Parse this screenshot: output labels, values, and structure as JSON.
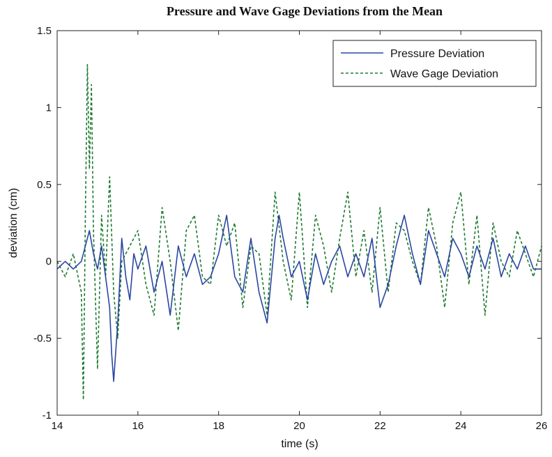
{
  "chart_data": {
    "type": "line",
    "title": "Pressure and Wave Gage Deviations from the Mean",
    "xlabel": "time (s)",
    "ylabel": "deviation (cm)",
    "xlim": [
      14,
      26
    ],
    "ylim": [
      -1,
      1.5
    ],
    "xticks": [
      14,
      16,
      18,
      20,
      22,
      24,
      26
    ],
    "xtick_labels": [
      "14",
      "16",
      "18",
      "20",
      "22",
      "24",
      "26"
    ],
    "yticks": [
      -1,
      -0.5,
      0,
      0.5,
      1,
      1.5
    ],
    "ytick_labels": [
      "-1",
      "-0.5",
      "0",
      "0.5",
      "1",
      "1.5"
    ],
    "grid": false,
    "legend_position": "top-right",
    "series": [
      {
        "name": "Pressure Deviation",
        "color": "#2a46a0",
        "line_style": "solid",
        "x": [
          14.0,
          14.2,
          14.4,
          14.6,
          14.7,
          14.8,
          14.9,
          15.0,
          15.1,
          15.2,
          15.3,
          15.35,
          15.4,
          15.5,
          15.6,
          15.7,
          15.8,
          15.9,
          16.0,
          16.2,
          16.4,
          16.6,
          16.8,
          17.0,
          17.2,
          17.4,
          17.6,
          17.8,
          18.0,
          18.2,
          18.4,
          18.6,
          18.8,
          19.0,
          19.2,
          19.4,
          19.5,
          19.6,
          19.8,
          20.0,
          20.2,
          20.4,
          20.6,
          20.8,
          21.0,
          21.2,
          21.4,
          21.6,
          21.8,
          22.0,
          22.2,
          22.4,
          22.6,
          22.8,
          23.0,
          23.2,
          23.4,
          23.6,
          23.8,
          24.0,
          24.2,
          24.4,
          24.6,
          24.8,
          25.0,
          25.2,
          25.4,
          25.6,
          25.8,
          26.0
        ],
        "values": [
          -0.05,
          0.0,
          -0.05,
          0.0,
          0.1,
          0.2,
          0.05,
          -0.05,
          0.1,
          -0.1,
          -0.3,
          -0.6,
          -0.78,
          -0.4,
          0.15,
          -0.1,
          -0.25,
          0.05,
          -0.05,
          0.1,
          -0.2,
          0.0,
          -0.35,
          0.1,
          -0.1,
          0.05,
          -0.15,
          -0.1,
          0.05,
          0.3,
          -0.1,
          -0.2,
          0.15,
          -0.2,
          -0.4,
          0.15,
          0.3,
          0.15,
          -0.1,
          0.0,
          -0.25,
          0.05,
          -0.15,
          0.0,
          0.1,
          -0.1,
          0.05,
          -0.1,
          0.15,
          -0.3,
          -0.15,
          0.1,
          0.3,
          0.05,
          -0.15,
          0.2,
          0.05,
          -0.1,
          0.15,
          0.05,
          -0.1,
          0.1,
          -0.05,
          0.15,
          -0.1,
          0.05,
          -0.05,
          0.1,
          -0.05,
          -0.05
        ]
      },
      {
        "name": "Wave Gage Deviation",
        "color": "#1e7a30",
        "line_style": "dashed",
        "x": [
          14.0,
          14.2,
          14.4,
          14.6,
          14.65,
          14.7,
          14.75,
          14.8,
          14.85,
          14.9,
          15.0,
          15.1,
          15.2,
          15.3,
          15.4,
          15.5,
          15.6,
          15.8,
          16.0,
          16.2,
          16.4,
          16.6,
          16.8,
          17.0,
          17.2,
          17.4,
          17.6,
          17.8,
          18.0,
          18.2,
          18.4,
          18.6,
          18.8,
          19.0,
          19.2,
          19.4,
          19.6,
          19.8,
          20.0,
          20.2,
          20.4,
          20.6,
          20.8,
          21.0,
          21.2,
          21.4,
          21.6,
          21.8,
          22.0,
          22.2,
          22.4,
          22.6,
          22.8,
          23.0,
          23.2,
          23.4,
          23.6,
          23.8,
          24.0,
          24.2,
          24.4,
          24.6,
          24.8,
          25.0,
          25.2,
          25.4,
          25.6,
          25.8,
          26.0
        ],
        "values": [
          0.0,
          -0.1,
          0.05,
          -0.2,
          -0.9,
          0.3,
          1.28,
          0.6,
          1.15,
          0.2,
          -0.7,
          0.3,
          -0.1,
          0.55,
          -0.2,
          -0.5,
          0.0,
          0.1,
          0.2,
          -0.15,
          -0.35,
          0.35,
          0.0,
          -0.45,
          0.2,
          0.3,
          -0.1,
          -0.15,
          0.3,
          0.1,
          0.25,
          -0.3,
          0.1,
          0.05,
          -0.35,
          0.45,
          0.0,
          -0.25,
          0.45,
          -0.3,
          0.3,
          0.1,
          -0.2,
          0.15,
          0.45,
          -0.1,
          0.2,
          -0.2,
          0.35,
          -0.2,
          0.25,
          0.2,
          0.0,
          -0.15,
          0.35,
          0.1,
          -0.3,
          0.25,
          0.45,
          -0.15,
          0.3,
          -0.35,
          0.25,
          0.0,
          -0.1,
          0.2,
          0.05,
          -0.1,
          0.1
        ]
      }
    ]
  }
}
